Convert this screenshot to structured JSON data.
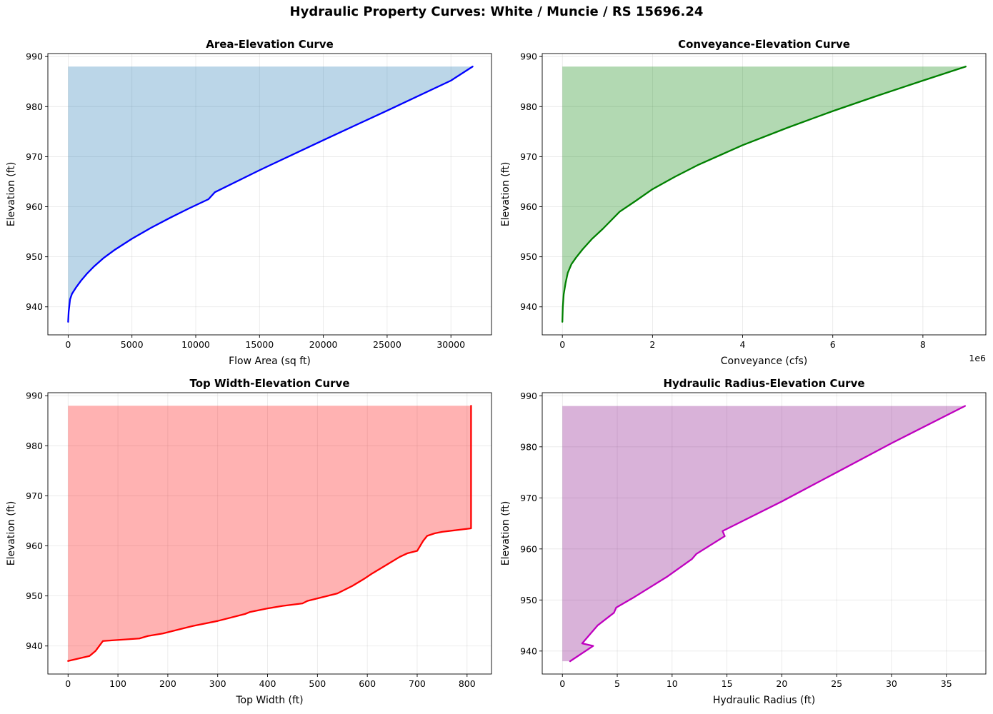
{
  "figure_title": "Hydraulic Property Curves: White / Muncie / RS 15696.24",
  "chart_data": [
    {
      "id": "area",
      "type": "area",
      "title": "Area-Elevation Curve",
      "xlabel": "Flow Area (sq ft)",
      "ylabel": "Elevation (ft)",
      "xlim": [
        -1590,
        33180
      ],
      "ylim": [
        934.4,
        990.6
      ],
      "xticks": [
        0,
        5000,
        10000,
        15000,
        20000,
        25000,
        30000
      ],
      "xtick_labels": [
        "0",
        "5000",
        "10000",
        "15000",
        "20000",
        "25000",
        "30000"
      ],
      "yticks": [
        940,
        950,
        960,
        970,
        980,
        990
      ],
      "ytick_labels": [
        "940",
        "950",
        "960",
        "970",
        "980",
        "990"
      ],
      "grid": true,
      "line_color": "#0000ff",
      "fill_color": "#1f77b4",
      "fill_opacity": 0.3,
      "fill_top": 988,
      "series": [
        {
          "x": [
            0,
            40,
            150,
            300,
            600,
            1000,
            1500,
            2000,
            2800,
            3600,
            5000,
            6500,
            8000,
            9500,
            11000,
            11500,
            15000,
            20000,
            25000,
            30000,
            31700
          ],
          "y": [
            937,
            939,
            941.5,
            942.6,
            943.8,
            945.2,
            946.7,
            948,
            949.8,
            951.3,
            953.6,
            955.8,
            957.8,
            959.7,
            961.5,
            962.9,
            967.3,
            973.3,
            979.2,
            985.2,
            988
          ]
        }
      ]
    },
    {
      "id": "conveyance",
      "type": "area",
      "title": "Conveyance-Elevation Curve",
      "xlabel": "Conveyance (cfs)",
      "ylabel": "Elevation (ft)",
      "xlim": [
        -0.447,
        9.397
      ],
      "ylim": [
        934.4,
        990.6
      ],
      "x_scale_label": "1e6",
      "xticks": [
        0,
        2,
        4,
        6,
        8
      ],
      "xtick_labels": [
        "0",
        "2",
        "4",
        "6",
        "8"
      ],
      "yticks": [
        940,
        950,
        960,
        970,
        980,
        990
      ],
      "ytick_labels": [
        "940",
        "950",
        "960",
        "970",
        "980",
        "990"
      ],
      "grid": true,
      "line_color": "#008000",
      "fill_color": "#008000",
      "fill_opacity": 0.3,
      "fill_top": 988,
      "series": [
        {
          "x": [
            0,
            0.01,
            0.03,
            0.07,
            0.12,
            0.2,
            0.3,
            0.45,
            0.65,
            0.9,
            1.27,
            1.6,
            2.0,
            2.5,
            3.0,
            4.0,
            5.0,
            6.0,
            7.0,
            8.0,
            8.95
          ],
          "y": [
            937,
            940,
            942.5,
            944.7,
            946.8,
            948.5,
            949.8,
            951.5,
            953.5,
            955.6,
            959,
            961,
            963.5,
            966,
            968.3,
            972.3,
            975.8,
            979.1,
            982.2,
            985.2,
            988
          ]
        }
      ]
    },
    {
      "id": "topwidth",
      "type": "area",
      "title": "Top Width-Elevation Curve",
      "xlabel": "Top Width (ft)",
      "ylabel": "Elevation (ft)",
      "xlim": [
        -40.5,
        849
      ],
      "ylim": [
        934.4,
        990.6
      ],
      "xticks": [
        0,
        100,
        200,
        300,
        400,
        500,
        600,
        700,
        800
      ],
      "xtick_labels": [
        "0",
        "100",
        "200",
        "300",
        "400",
        "500",
        "600",
        "700",
        "800"
      ],
      "yticks": [
        940,
        950,
        960,
        970,
        980,
        990
      ],
      "ytick_labels": [
        "940",
        "950",
        "960",
        "970",
        "980",
        "990"
      ],
      "grid": true,
      "line_color": "#ff0000",
      "fill_color": "#ff0000",
      "fill_opacity": 0.3,
      "fill_top": 988,
      "series": [
        {
          "x": [
            0,
            43,
            55,
            70,
            143,
            160,
            190,
            250,
            300,
            355,
            365,
            400,
            430,
            470,
            480,
            540,
            570,
            595,
            610,
            640,
            665,
            680,
            700,
            712,
            720,
            735,
            750,
            808,
            808
          ],
          "y": [
            937,
            938,
            939,
            941,
            941.5,
            942,
            942.5,
            944,
            945,
            946.4,
            946.8,
            947.5,
            948,
            948.5,
            949,
            950.5,
            952,
            953.5,
            954.5,
            956.3,
            957.8,
            958.5,
            959,
            961,
            962,
            962.5,
            962.8,
            963.5,
            988
          ]
        }
      ]
    },
    {
      "id": "hydraulic_radius",
      "type": "area",
      "title": "Hydraulic Radius-Elevation Curve",
      "xlabel": "Hydraulic Radius (ft)",
      "ylabel": "Elevation (ft)",
      "xlim": [
        -1.84,
        38.6
      ],
      "ylim": [
        935.5,
        990.6
      ],
      "xticks": [
        0,
        5,
        10,
        15,
        20,
        25,
        30,
        35
      ],
      "xtick_labels": [
        "0",
        "5",
        "10",
        "15",
        "20",
        "25",
        "30",
        "35"
      ],
      "yticks": [
        940,
        950,
        960,
        970,
        980,
        990
      ],
      "ytick_labels": [
        "940",
        "950",
        "960",
        "970",
        "980",
        "990"
      ],
      "grid": true,
      "line_color": "#bf00bf",
      "fill_color": "#800080",
      "fill_opacity": 0.3,
      "fill_top": 988,
      "fill_start": [
        0,
        938
      ],
      "series": [
        {
          "x": [
            0.7,
            2.8,
            1.8,
            2.4,
            3.2,
            4.7,
            4.9,
            6.5,
            9.5,
            11.8,
            12.2,
            14.8,
            14.6,
            20,
            25,
            30,
            36.7
          ],
          "y": [
            938,
            941,
            941.5,
            943,
            945,
            947.5,
            948.5,
            950.5,
            954.5,
            958,
            959,
            962.5,
            963.5,
            969.3,
            975,
            980.7,
            988
          ]
        }
      ]
    }
  ]
}
